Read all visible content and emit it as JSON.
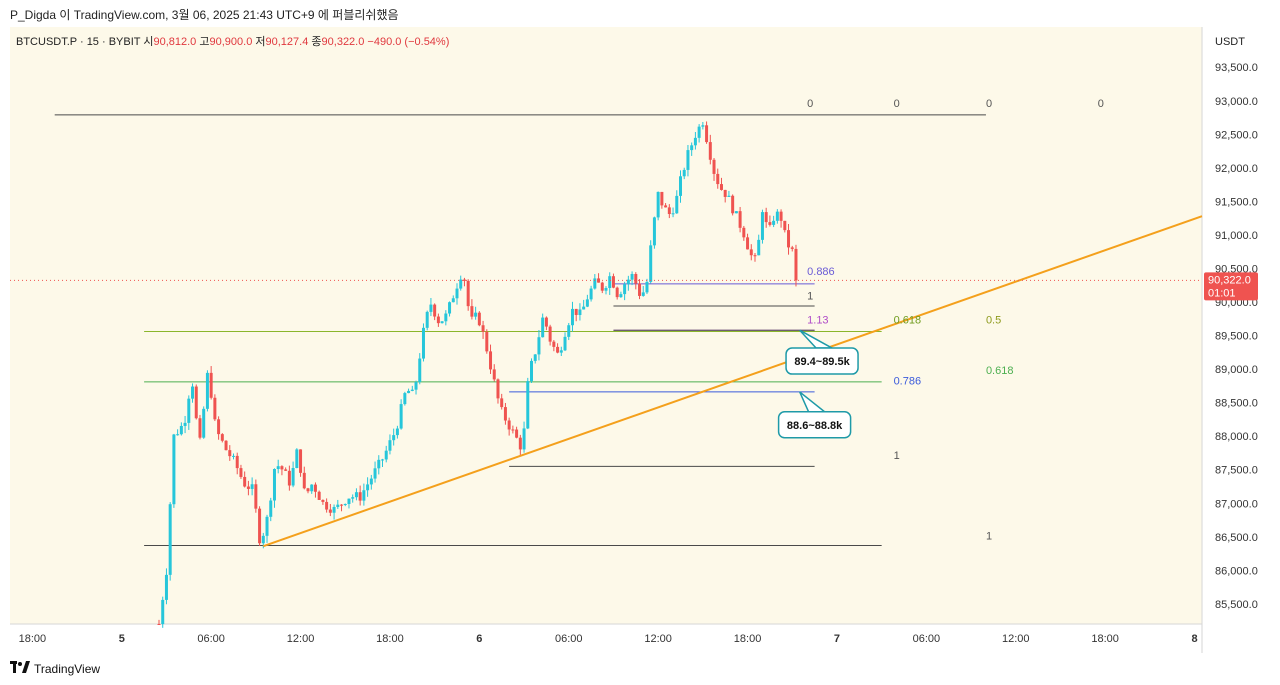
{
  "header": {
    "publisher": "P_Digda",
    "published_text": "이 TradingView.com, 3월 06, 2025 21:43 UTC+9 에 퍼블리쉬했음"
  },
  "symbol": {
    "ticker": "BTCUSDT.P · 15 · BYBIT",
    "open_label": "시",
    "open": "90,812.0",
    "high_label": "고",
    "high": "90,900.0",
    "low_label": "저",
    "low": "90,127.4",
    "close_label": "종",
    "close": "90,322.0",
    "change": "−490.0 (−0.54%)"
  },
  "footer": {
    "brand": "TradingView"
  },
  "colors": {
    "background": "#fdf9e9",
    "up": "#26c6da",
    "down": "#ef5350",
    "trendline": "#f4a01c",
    "price_line": "#ef5350",
    "axis_bg": "#ffffff"
  },
  "chart_data": {
    "type": "candlestick",
    "title": "BTCUSDT.P · 15 · BYBIT",
    "y_axis_unit": "USDT",
    "ylim": [
      85200,
      94100
    ],
    "y_ticks": [
      "85,500.0",
      "86,000.0",
      "86,500.0",
      "87,000.0",
      "87,500.0",
      "88,000.0",
      "88,500.0",
      "89,000.0",
      "89,500.0",
      "90,000.0",
      "90,500.0",
      "91,000.0",
      "91,500.0",
      "92,000.0",
      "92,500.0",
      "93,000.0",
      "93,500.0"
    ],
    "x_axis": {
      "time_range_hours": [
        0,
        72
      ],
      "time_ref": "day 5 00:00 = 0h",
      "ticks": [
        {
          "t": -6,
          "label": "18:00",
          "bold": false
        },
        {
          "t": 0,
          "label": "5",
          "bold": true
        },
        {
          "t": 6,
          "label": "06:00",
          "bold": false
        },
        {
          "t": 12,
          "label": "12:00",
          "bold": false
        },
        {
          "t": 18,
          "label": "18:00",
          "bold": false
        },
        {
          "t": 24,
          "label": "6",
          "bold": true
        },
        {
          "t": 30,
          "label": "06:00",
          "bold": false
        },
        {
          "t": 36,
          "label": "12:00",
          "bold": false
        },
        {
          "t": 42,
          "label": "18:00",
          "bold": false
        },
        {
          "t": 48,
          "label": "7",
          "bold": true
        },
        {
          "t": 54,
          "label": "06:00",
          "bold": false
        },
        {
          "t": 60,
          "label": "12:00",
          "bold": false
        },
        {
          "t": 66,
          "label": "18:00",
          "bold": false
        },
        {
          "t": 72,
          "label": "8",
          "bold": true
        }
      ],
      "view_start": -7.5,
      "view_end": 72.5
    },
    "current_price": {
      "value": 90322.0,
      "label": "90,322.0",
      "countdown": "01:01"
    },
    "path_points": [
      [
        2.5,
        85200
      ],
      [
        3.0,
        86000
      ],
      [
        3.5,
        88000
      ],
      [
        4.2,
        88200
      ],
      [
        4.7,
        88900
      ],
      [
        5.2,
        87800
      ],
      [
        5.8,
        89000
      ],
      [
        6.3,
        88100
      ],
      [
        7.0,
        87800
      ],
      [
        7.6,
        87600
      ],
      [
        8.2,
        87300
      ],
      [
        8.8,
        87200
      ],
      [
        9.3,
        86400
      ],
      [
        9.8,
        86800
      ],
      [
        10.3,
        87600
      ],
      [
        10.8,
        87500
      ],
      [
        11.3,
        87300
      ],
      [
        11.8,
        87800
      ],
      [
        12.3,
        87100
      ],
      [
        12.8,
        87300
      ],
      [
        13.5,
        87000
      ],
      [
        14.3,
        86900
      ],
      [
        15.2,
        87100
      ],
      [
        16.0,
        87100
      ],
      [
        16.8,
        87400
      ],
      [
        17.6,
        87700
      ],
      [
        18.4,
        88100
      ],
      [
        19.1,
        88700
      ],
      [
        19.6,
        88600
      ],
      [
        20.2,
        89500
      ],
      [
        20.7,
        90000
      ],
      [
        21.3,
        89700
      ],
      [
        21.8,
        89800
      ],
      [
        22.4,
        90200
      ],
      [
        22.9,
        90500
      ],
      [
        23.4,
        89700
      ],
      [
        23.9,
        89800
      ],
      [
        24.4,
        89400
      ],
      [
        24.9,
        88900
      ],
      [
        25.4,
        88400
      ],
      [
        25.9,
        88200
      ],
      [
        26.4,
        88000
      ],
      [
        26.9,
        87800
      ],
      [
        27.3,
        88900
      ],
      [
        27.8,
        89300
      ],
      [
        28.3,
        89800
      ],
      [
        28.8,
        89400
      ],
      [
        29.3,
        89200
      ],
      [
        29.8,
        89600
      ],
      [
        30.3,
        89900
      ],
      [
        30.8,
        89800
      ],
      [
        31.3,
        90100
      ],
      [
        31.8,
        90300
      ],
      [
        32.3,
        90200
      ],
      [
        32.8,
        90400
      ],
      [
        33.3,
        90100
      ],
      [
        33.8,
        90300
      ],
      [
        34.3,
        90400
      ],
      [
        34.8,
        90100
      ],
      [
        35.2,
        90200
      ],
      [
        35.6,
        91000
      ],
      [
        36.0,
        91600
      ],
      [
        36.4,
        91400
      ],
      [
        36.8,
        91300
      ],
      [
        37.2,
        91500
      ],
      [
        37.6,
        91900
      ],
      [
        38.0,
        92200
      ],
      [
        38.5,
        92500
      ],
      [
        39.0,
        92700
      ],
      [
        39.4,
        92300
      ],
      [
        39.8,
        91900
      ],
      [
        40.2,
        91700
      ],
      [
        40.6,
        91600
      ],
      [
        41.0,
        91400
      ],
      [
        41.4,
        91200
      ],
      [
        41.8,
        91000
      ],
      [
        42.2,
        90700
      ],
      [
        42.6,
        90600
      ],
      [
        43.0,
        91400
      ],
      [
        43.4,
        91000
      ],
      [
        43.8,
        91300
      ],
      [
        44.2,
        91300
      ],
      [
        44.6,
        90900
      ],
      [
        45.0,
        90750
      ],
      [
        45.4,
        90322
      ]
    ],
    "trendline": {
      "start": [
        9.5,
        86360
      ],
      "end": [
        72.5,
        91280
      ]
    },
    "horizontal_levels": [
      {
        "t0": -4.5,
        "t1": 58.0,
        "price": 92790,
        "color": "#4a4a4a"
      },
      {
        "t0": 1.5,
        "t1": 51.0,
        "price": 89560,
        "color": "#8bb62c"
      },
      {
        "t0": 1.5,
        "t1": 51.0,
        "price": 88810,
        "color": "#4caf50"
      },
      {
        "t0": 1.5,
        "t1": 51.0,
        "price": 86370,
        "color": "#4a4a4a"
      },
      {
        "t0": 26.0,
        "t1": 46.5,
        "price": 88660,
        "color": "#3b5bdb"
      },
      {
        "t0": 26.0,
        "t1": 46.5,
        "price": 87550,
        "color": "#4a4a4a"
      },
      {
        "t0": 33.0,
        "t1": 46.5,
        "price": 89580,
        "color": "#b04cc8"
      },
      {
        "t0": 33.0,
        "t1": 46.5,
        "price": 89580,
        "color": "#4a4a4a"
      },
      {
        "t0": 33.0,
        "t1": 46.5,
        "price": 90270,
        "color": "#6a5bd6"
      },
      {
        "t0": 33.0,
        "t1": 46.5,
        "price": 89940,
        "color": "#4a4a4a"
      }
    ],
    "annotations": [
      {
        "t": 46.0,
        "price": 92970,
        "text": "0",
        "color": "#555555"
      },
      {
        "t": 51.8,
        "price": 92970,
        "text": "0",
        "color": "#555555"
      },
      {
        "t": 58.0,
        "price": 92970,
        "text": "0",
        "color": "#555555"
      },
      {
        "t": 65.5,
        "price": 92970,
        "text": "0",
        "color": "#555555"
      },
      {
        "t": 46.0,
        "price": 90460,
        "text": "0.886",
        "color": "#6a5bd6"
      },
      {
        "t": 46.0,
        "price": 90100,
        "text": "1",
        "color": "#555555"
      },
      {
        "t": 46.0,
        "price": 89740,
        "text": "1.13",
        "color": "#b04cc8"
      },
      {
        "t": 51.8,
        "price": 89740,
        "text": "0.618",
        "color": "#6e9b1c"
      },
      {
        "t": 58.0,
        "price": 89740,
        "text": "0.5",
        "color": "#8d9a1c"
      },
      {
        "t": 51.8,
        "price": 88830,
        "text": "0.786",
        "color": "#3b5bdb"
      },
      {
        "t": 58.0,
        "price": 88990,
        "text": "0.618",
        "color": "#4caf50"
      },
      {
        "t": 51.8,
        "price": 87720,
        "text": "1",
        "color": "#555555"
      },
      {
        "t": 58.0,
        "price": 86520,
        "text": "1",
        "color": "#555555"
      }
    ],
    "callouts": [
      {
        "text": "89.4~89.5k",
        "t": 47.0,
        "price": 89120,
        "pointer_to": [
          45.5,
          89580
        ]
      },
      {
        "text": "88.6~88.8k",
        "t": 46.5,
        "price": 88170,
        "pointer_to": [
          45.5,
          88660
        ]
      }
    ]
  }
}
